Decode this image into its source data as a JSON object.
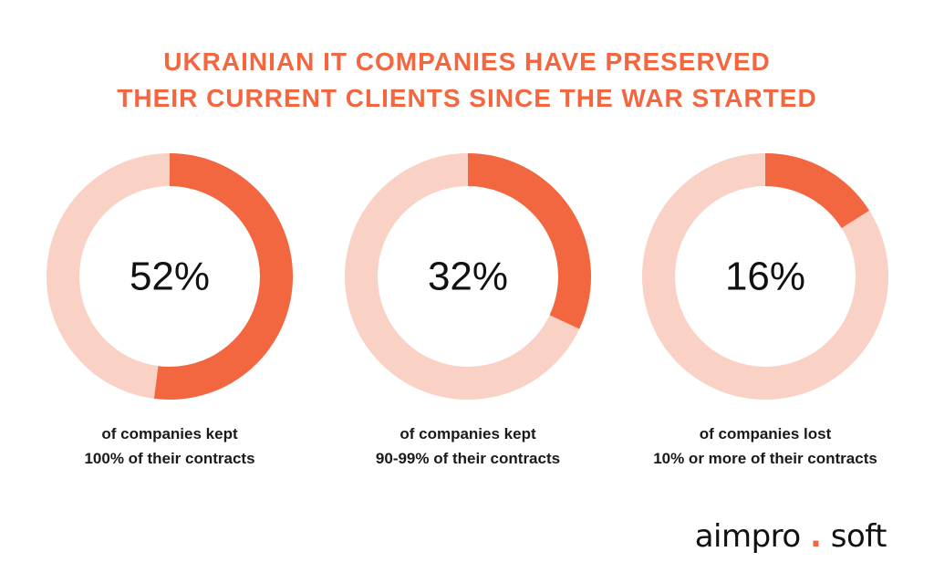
{
  "chart_data": {
    "type": "donut",
    "title_lines": [
      "UKRAINIAN IT COMPANIES HAVE PRESERVED",
      "THEIR CURRENT CLIENTS SINCE THE WAR STARTED"
    ],
    "items": [
      {
        "value": 52,
        "label": "52%",
        "caption_lines": [
          "of companies kept",
          "100% of their contracts"
        ]
      },
      {
        "value": 32,
        "label": "32%",
        "caption_lines": [
          "of companies kept",
          "90-99% of their contracts"
        ]
      },
      {
        "value": 16,
        "label": "16%",
        "caption_lines": [
          "of companies lost",
          "10% or more of their contracts"
        ]
      }
    ],
    "colors": {
      "filled": "#f26640",
      "remainder": "#f9d1c5"
    }
  },
  "brand": {
    "name_left": "aimpro",
    "separator": ".",
    "name_right": "soft"
  }
}
